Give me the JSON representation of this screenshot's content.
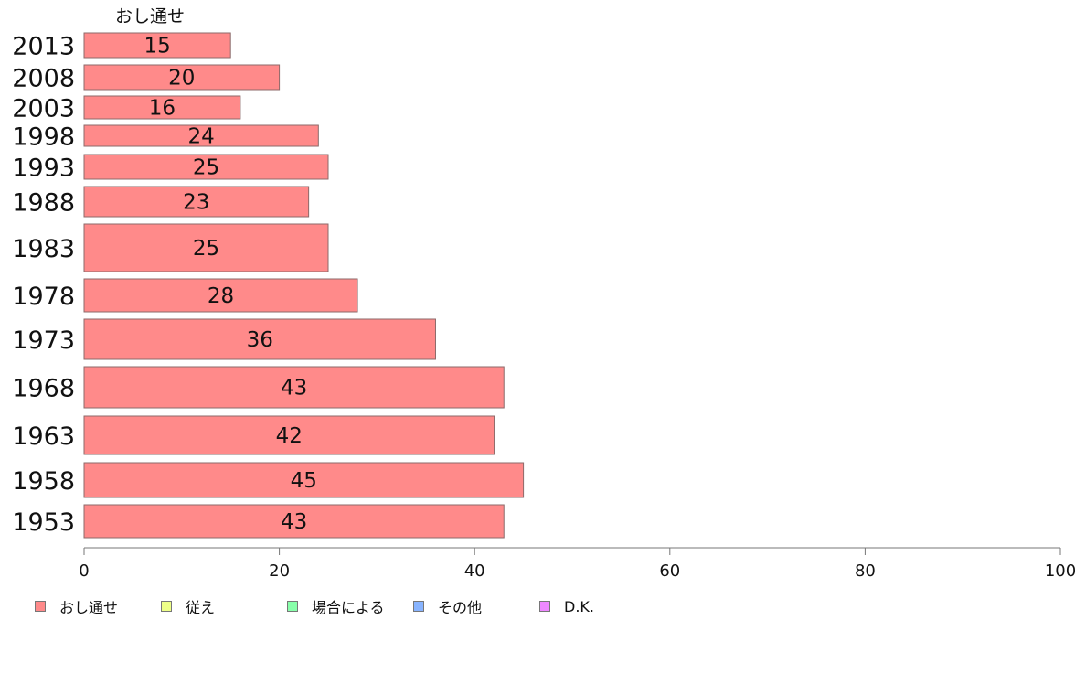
{
  "chart_data": {
    "type": "bar",
    "orientation": "horizontal",
    "categories": [
      "2013",
      "2008",
      "2003",
      "1998",
      "1993",
      "1988",
      "1983",
      "1978",
      "1973",
      "1968",
      "1963",
      "1958",
      "1953"
    ],
    "series": [
      {
        "name": "おし通せ",
        "values": [
          15,
          20,
          16,
          24,
          25,
          23,
          25,
          28,
          36,
          43,
          42,
          45,
          43
        ],
        "color": "#ff8a8a"
      }
    ],
    "series_header": "おし通せ",
    "xlim": [
      0,
      100
    ],
    "xticks": [
      "0",
      "20",
      "40",
      "60",
      "80",
      "100"
    ],
    "legend": {
      "placement": "bottom-left",
      "entries": [
        {
          "label": "おし通せ",
          "color": "#ff8a8a"
        },
        {
          "label": "従え",
          "color": "#eeff88"
        },
        {
          "label": "場合による",
          "color": "#88ffaa"
        },
        {
          "label": "その他",
          "color": "#88b4ff"
        },
        {
          "label": "D.K.",
          "color": "#ee88ff"
        }
      ]
    }
  }
}
